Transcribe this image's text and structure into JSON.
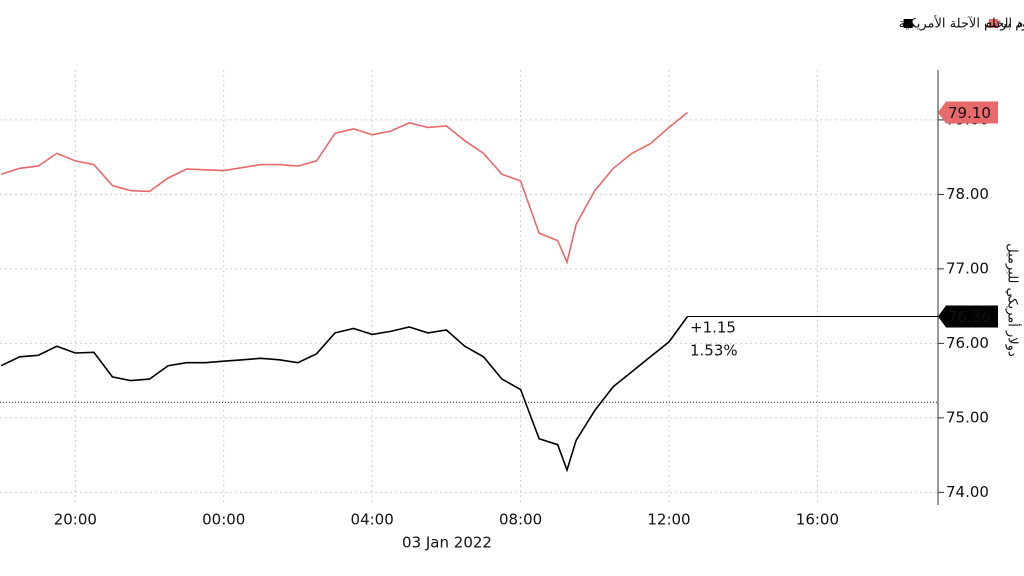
{
  "chart_data": {
    "type": "line",
    "legend": [
      "top-right"
    ],
    "y_axis_label": "دولار أمريكي للبرميل",
    "date_label": "03 Jan 2022",
    "change_label": "+1.15",
    "change_pct_label": "1.53%",
    "reference_value": 75.21,
    "grid": true,
    "x": [
      -6,
      -5.5,
      -5,
      -4.5,
      -4,
      -3.5,
      -3,
      -2.5,
      -2,
      -1.5,
      -1,
      -0.5,
      0,
      0.5,
      1,
      1.5,
      2,
      2.5,
      3,
      3.5,
      4,
      4.5,
      5,
      5.5,
      6,
      6.5,
      7,
      7.5,
      8,
      8.5,
      9,
      9.25,
      9.5,
      10,
      10.5,
      11,
      11.5,
      12,
      12.5
    ],
    "xlim": [
      -6.03,
      19.25
    ],
    "xticks": [
      {
        "value": -4,
        "label": "20:00"
      },
      {
        "value": 0,
        "label": "00:00"
      },
      {
        "value": 4,
        "label": "04:00"
      },
      {
        "value": 8,
        "label": "08:00"
      },
      {
        "value": 12,
        "label": "12:00"
      },
      {
        "value": 16,
        "label": "16:00"
      }
    ],
    "ylim": [
      73.83,
      79.67
    ],
    "yticks": [
      {
        "value": 74,
        "label": "74.00"
      },
      {
        "value": 75,
        "label": "75.00"
      },
      {
        "value": 76,
        "label": "76.00"
      },
      {
        "value": 77,
        "label": "77.00"
      },
      {
        "value": 78,
        "label": "78.00"
      },
      {
        "value": 79,
        "label": "79.00"
      }
    ],
    "series": [
      {
        "name": "خام برنت",
        "color": "#e8696b",
        "last_label": "79.10",
        "values": [
          78.27,
          78.35,
          78.38,
          78.55,
          78.45,
          78.4,
          78.12,
          78.05,
          78.04,
          78.22,
          78.34,
          78.33,
          78.32,
          78.36,
          78.4,
          78.4,
          78.38,
          78.45,
          78.82,
          78.88,
          78.8,
          78.85,
          78.96,
          78.9,
          78.92,
          78.72,
          78.55,
          78.27,
          78.18,
          77.48,
          77.38,
          77.09,
          77.6,
          78.05,
          78.35,
          78.55,
          78.68,
          78.9,
          79.1
        ]
      },
      {
        "name": "عقود الخام الآجلة الأمريكية",
        "color": "#000000",
        "last_label": "76.36",
        "values": [
          75.7,
          75.82,
          75.84,
          75.96,
          75.87,
          75.88,
          75.55,
          75.5,
          75.52,
          75.7,
          75.74,
          75.74,
          75.76,
          75.78,
          75.8,
          75.78,
          75.74,
          75.86,
          76.14,
          76.2,
          76.12,
          76.16,
          76.22,
          76.14,
          76.18,
          75.96,
          75.82,
          75.52,
          75.38,
          74.72,
          74.64,
          74.3,
          74.7,
          75.1,
          75.42,
          75.62,
          75.82,
          76.02,
          76.36
        ]
      }
    ]
  }
}
